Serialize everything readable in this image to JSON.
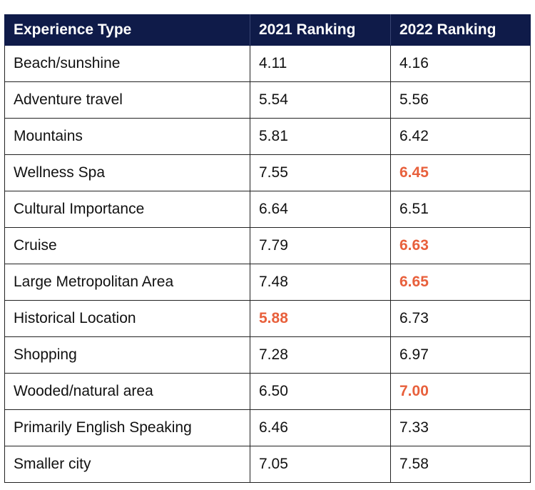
{
  "chart_data": {
    "type": "table",
    "columns": [
      "Experience Type",
      "2021 Ranking",
      "2022 Ranking"
    ],
    "rows": [
      {
        "label": "Beach/sunshine",
        "y2021": "4.11",
        "y2022": "4.16",
        "hl2021": false,
        "hl2022": false
      },
      {
        "label": "Adventure travel",
        "y2021": "5.54",
        "y2022": "5.56",
        "hl2021": false,
        "hl2022": false
      },
      {
        "label": "Mountains",
        "y2021": "5.81",
        "y2022": "6.42",
        "hl2021": false,
        "hl2022": false
      },
      {
        "label": "Wellness Spa",
        "y2021": "7.55",
        "y2022": "6.45",
        "hl2021": false,
        "hl2022": true
      },
      {
        "label": "Cultural Importance",
        "y2021": "6.64",
        "y2022": "6.51",
        "hl2021": false,
        "hl2022": false
      },
      {
        "label": "Cruise",
        "y2021": "7.79",
        "y2022": "6.63",
        "hl2021": false,
        "hl2022": true
      },
      {
        "label": "Large Metropolitan Area",
        "y2021": "7.48",
        "y2022": "6.65",
        "hl2021": false,
        "hl2022": true
      },
      {
        "label": "Historical Location",
        "y2021": "5.88",
        "y2022": "6.73",
        "hl2021": true,
        "hl2022": false
      },
      {
        "label": "Shopping",
        "y2021": "7.28",
        "y2022": "6.97",
        "hl2021": false,
        "hl2022": false
      },
      {
        "label": "Wooded/natural area",
        "y2021": "6.50",
        "y2022": "7.00",
        "hl2021": false,
        "hl2022": true
      },
      {
        "label": "Primarily English Speaking",
        "y2021": "6.46",
        "y2022": "7.33",
        "hl2021": false,
        "hl2022": false
      },
      {
        "label": "Smaller city",
        "y2021": "7.05",
        "y2022": "7.58",
        "hl2021": false,
        "hl2022": false
      }
    ],
    "colors": {
      "header_bg": "#0f1b49",
      "header_text": "#ffffff",
      "highlight": "#e8603c",
      "text": "#111111"
    }
  }
}
